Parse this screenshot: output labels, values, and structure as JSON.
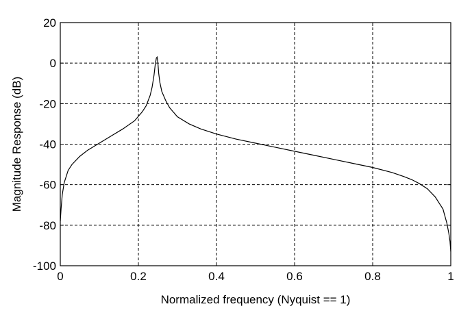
{
  "chart_data": {
    "type": "line",
    "title": "",
    "xlabel": "Normalized frequency (Nyquist == 1)",
    "ylabel": "Magnitude Response (dB)",
    "xlim": [
      0,
      1
    ],
    "ylim": [
      -100,
      20
    ],
    "xticks": [
      0,
      0.2,
      0.4,
      0.6,
      0.8,
      1
    ],
    "xtick_labels": [
      "0",
      "0.2",
      "0.4",
      "0.6",
      "0.8",
      "1"
    ],
    "yticks": [
      -100,
      -80,
      -60,
      -40,
      -20,
      0,
      20
    ],
    "ytick_labels": [
      "-100",
      "-80",
      "-60",
      "-40",
      "-20",
      "0",
      "20"
    ],
    "grid": true,
    "grid_style": "dashed",
    "line_color": "#000000",
    "series": [
      {
        "x": [
          0,
          0.002,
          0.005,
          0.01,
          0.02,
          0.03,
          0.05,
          0.07,
          0.1,
          0.13,
          0.16,
          0.19,
          0.21,
          0.22,
          0.23,
          0.235,
          0.24,
          0.243,
          0.246,
          0.248,
          0.25,
          0.252,
          0.255,
          0.26,
          0.27,
          0.28,
          0.3,
          0.33,
          0.36,
          0.4,
          0.45,
          0.5,
          0.55,
          0.6,
          0.65,
          0.7,
          0.75,
          0.8,
          0.85,
          0.88,
          0.9,
          0.92,
          0.94,
          0.96,
          0.97,
          0.98,
          0.99,
          0.995,
          0.998,
          1.0
        ],
        "y": [
          -78,
          -72,
          -65,
          -59,
          -53,
          -50,
          -46,
          -43,
          -39.5,
          -36,
          -32.5,
          -28.5,
          -24,
          -21,
          -16,
          -12,
          -6,
          -1,
          2.5,
          3,
          0,
          -5,
          -9.5,
          -14,
          -18.5,
          -22,
          -26.5,
          -30,
          -32.5,
          -35,
          -37.5,
          -39.5,
          -41.5,
          -43.5,
          -45.5,
          -47.5,
          -49.5,
          -51.5,
          -54,
          -56,
          -57.5,
          -59.5,
          -62,
          -66,
          -69,
          -72,
          -79,
          -84,
          -88,
          -93
        ]
      }
    ]
  }
}
